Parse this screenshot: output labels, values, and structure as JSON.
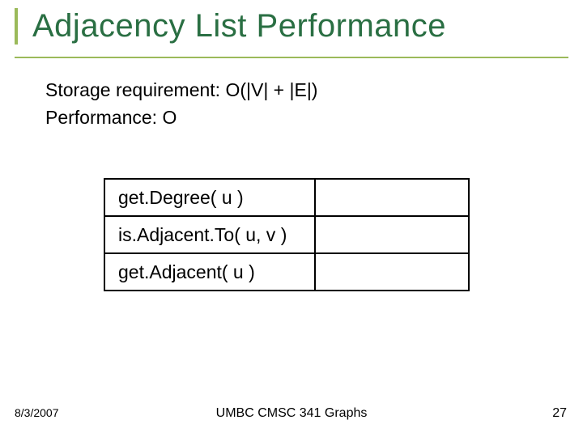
{
  "title": "Adjacency List Performance",
  "lines": {
    "storage": "Storage requirement: O(|V| + |E|)",
    "performance": "Performance: O"
  },
  "table": {
    "rows": [
      {
        "op": "get.Degree( u )",
        "val": ""
      },
      {
        "op": "is.Adjacent.To( u, v )",
        "val": ""
      },
      {
        "op": "get.Adjacent( u )",
        "val": ""
      }
    ]
  },
  "footer": {
    "date": "8/3/2007",
    "center": "UMBC CMSC 341 Graphs",
    "page": "27"
  },
  "colors": {
    "title": "#2a6f43",
    "accent": "#9bba5a",
    "text": "#000000",
    "background": "#ffffff"
  },
  "fonts": {
    "title_size": 40,
    "body_size": 23,
    "footer_small": 14,
    "footer_normal": 16
  }
}
